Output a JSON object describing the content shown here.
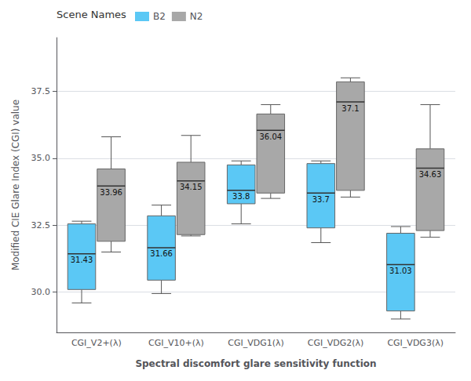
{
  "chart_data": {
    "type": "boxplot",
    "xlabel": "Spectral discomfort glare sensitivity function",
    "ylabel": "Modified CIE Glare Index (CGI) value",
    "categories": [
      "CGI_V2+(λ)",
      "CGI_V10+(λ)",
      "CGI_VDG1(λ)",
      "CGI_VDG2(λ)",
      "CGI_VDG3(λ)"
    ],
    "series": [
      {
        "name": "B2",
        "color": "#5BC8F5",
        "values": [
          {
            "whislo": 29.6,
            "q1": 30.1,
            "med": 31.43,
            "q3": 32.55,
            "whishi": 32.65
          },
          {
            "whislo": 29.95,
            "q1": 30.45,
            "med": 31.66,
            "q3": 32.85,
            "whishi": 33.25
          },
          {
            "whislo": 32.55,
            "q1": 33.3,
            "med": 33.8,
            "q3": 34.75,
            "whishi": 34.9
          },
          {
            "whislo": 31.85,
            "q1": 32.4,
            "med": 33.7,
            "q3": 34.8,
            "whishi": 34.9
          },
          {
            "whislo": 29.0,
            "q1": 29.3,
            "med": 31.03,
            "q3": 32.2,
            "whishi": 32.45
          }
        ]
      },
      {
        "name": "N2",
        "color": "#A8A8A8",
        "values": [
          {
            "whislo": 31.5,
            "q1": 31.9,
            "med": 33.96,
            "q3": 34.6,
            "whishi": 35.8
          },
          {
            "whislo": 32.1,
            "q1": 32.15,
            "med": 34.15,
            "q3": 34.85,
            "whishi": 35.85
          },
          {
            "whislo": 33.5,
            "q1": 33.7,
            "med": 36.04,
            "q3": 36.65,
            "whishi": 37.0
          },
          {
            "whislo": 33.55,
            "q1": 33.8,
            "med": 37.1,
            "q3": 37.85,
            "whishi": 38.0
          },
          {
            "whislo": 32.05,
            "q1": 32.3,
            "med": 34.63,
            "q3": 35.35,
            "whishi": 37.0
          }
        ]
      }
    ],
    "ylim": [
      28.5,
      39.5
    ],
    "yticks": [
      {
        "value": 30.0,
        "label": "30.0"
      },
      32.5,
      {
        "value": 35.0,
        "label": "35.0"
      },
      37.5
    ],
    "grid": true,
    "legend": "upper left",
    "legend_title": "Scene Names",
    "data_labels": true
  }
}
